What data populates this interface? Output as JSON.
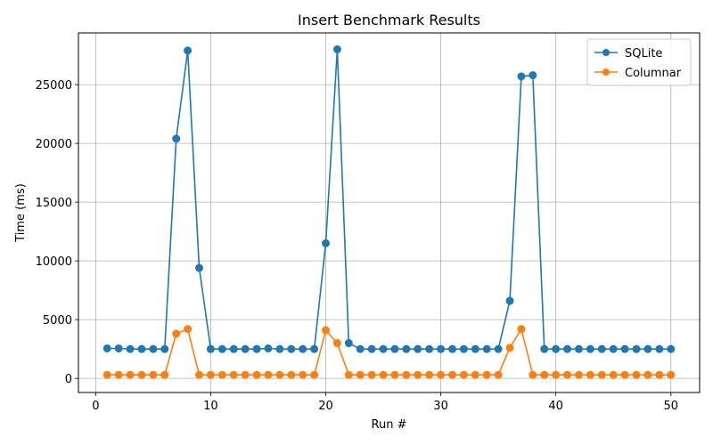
{
  "chart_data": {
    "type": "line",
    "title": "Insert Benchmark Results",
    "xlabel": "Run #",
    "ylabel": "Time (ms)",
    "xlim": [
      -1.5,
      52.5
    ],
    "ylim": [
      -1200,
      29400
    ],
    "xticks": [
      0,
      10,
      20,
      30,
      40,
      50
    ],
    "yticks": [
      0,
      5000,
      10000,
      15000,
      20000,
      25000
    ],
    "grid": true,
    "legend_position": "top-right",
    "x": [
      1,
      2,
      3,
      4,
      5,
      6,
      7,
      8,
      9,
      10,
      11,
      12,
      13,
      14,
      15,
      16,
      17,
      18,
      19,
      20,
      21,
      22,
      23,
      24,
      25,
      26,
      27,
      28,
      29,
      30,
      31,
      32,
      33,
      34,
      35,
      36,
      37,
      38,
      39,
      40,
      41,
      42,
      43,
      44,
      45,
      46,
      47,
      48,
      49,
      50
    ],
    "series": [
      {
        "name": "SQLite",
        "color": "#1f77b4",
        "values": [
          2550,
          2550,
          2500,
          2500,
          2500,
          2500,
          20400,
          27900,
          9400,
          2500,
          2500,
          2500,
          2500,
          2500,
          2550,
          2500,
          2500,
          2500,
          2500,
          11500,
          28000,
          3000,
          2500,
          2500,
          2500,
          2500,
          2500,
          2500,
          2500,
          2500,
          2500,
          2500,
          2500,
          2500,
          2500,
          6600,
          25700,
          25800,
          2500,
          2500,
          2500,
          2500,
          2500,
          2500,
          2500,
          2500,
          2500,
          2500,
          2500,
          2500
        ]
      },
      {
        "name": "Columnar",
        "color": "#ff7f0e",
        "values": [
          300,
          300,
          300,
          300,
          300,
          300,
          3800,
          4200,
          300,
          300,
          300,
          300,
          300,
          300,
          300,
          300,
          300,
          300,
          300,
          4100,
          3000,
          300,
          300,
          300,
          300,
          300,
          300,
          300,
          300,
          300,
          300,
          300,
          300,
          300,
          300,
          2600,
          4200,
          300,
          300,
          300,
          300,
          300,
          300,
          300,
          300,
          300,
          300,
          300,
          300,
          300
        ]
      }
    ]
  }
}
